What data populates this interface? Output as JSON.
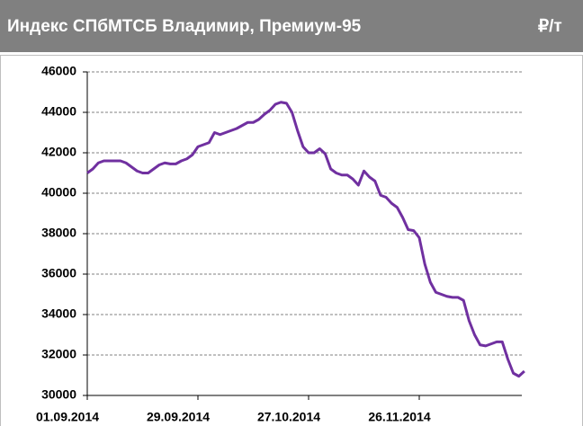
{
  "chart_data": {
    "type": "line",
    "title": "Индекс СПбМТСБ Владимир, Премиум-95",
    "unit": "₽/т",
    "categories": [
      "01.09.2014",
      null,
      null,
      null,
      null,
      null,
      null,
      null,
      null,
      null,
      null,
      null,
      null,
      null,
      null,
      null,
      null,
      null,
      null,
      null,
      "29.09.2014",
      null,
      null,
      null,
      null,
      null,
      null,
      null,
      null,
      null,
      null,
      null,
      null,
      null,
      null,
      null,
      null,
      null,
      null,
      null,
      "27.10.2014",
      null,
      null,
      null,
      null,
      null,
      null,
      null,
      null,
      null,
      null,
      null,
      null,
      null,
      null,
      null,
      null,
      null,
      null,
      null,
      "26.11.2014",
      null,
      null,
      null,
      null,
      null,
      null,
      null,
      null,
      null,
      null,
      null,
      null,
      null,
      null,
      null,
      null,
      null,
      null,
      null
    ],
    "series": [
      {
        "name": "Премиум-95",
        "color": "#7030a0",
        "values": [
          41000,
          41200,
          41500,
          41600,
          41600,
          41600,
          41600,
          41500,
          41300,
          41100,
          41000,
          41000,
          41200,
          41400,
          41500,
          41450,
          41450,
          41600,
          41700,
          41900,
          42300,
          42400,
          42500,
          43000,
          42900,
          43000,
          43100,
          43200,
          43350,
          43500,
          43500,
          43650,
          43900,
          44100,
          44400,
          44500,
          44450,
          44000,
          43100,
          42300,
          42000,
          42000,
          42200,
          41950,
          41200,
          41000,
          40900,
          40900,
          40700,
          40400,
          41100,
          40800,
          40600,
          39900,
          39800,
          39500,
          39300,
          38800,
          38200,
          38150,
          37800,
          36500,
          35600,
          35100,
          35000,
          34900,
          34850,
          34850,
          34700,
          33700,
          33000,
          32500,
          32450,
          32550,
          32650,
          32650,
          31800,
          31100,
          30950,
          31200
        ]
      }
    ],
    "ylim": [
      30000,
      46000
    ],
    "yticks": [
      30000,
      32000,
      34000,
      36000,
      38000,
      40000,
      42000,
      44000,
      46000
    ],
    "grid": true
  }
}
